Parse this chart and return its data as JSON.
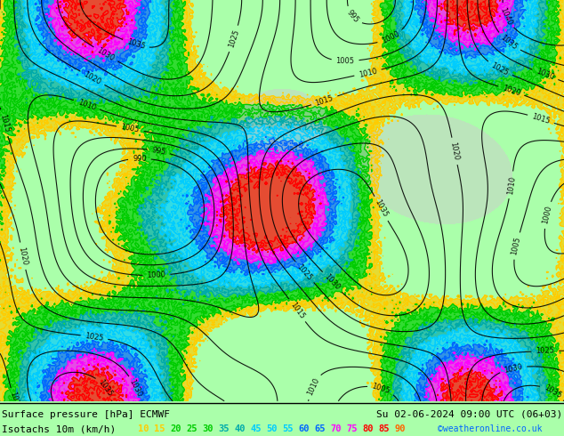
{
  "title_left": "Surface pressure [hPa] ECMWF",
  "title_right": "Su 02-06-2024 09:00 UTC (06+03)",
  "legend_label": "Isotachs 10m (km/h)",
  "copyright": "©weatheronline.co.uk",
  "isotach_values": [
    10,
    15,
    20,
    25,
    30,
    35,
    40,
    45,
    50,
    55,
    60,
    65,
    70,
    75,
    80,
    85,
    90
  ],
  "isotach_colors": [
    "#ffcc00",
    "#ffcc00",
    "#00cc00",
    "#00cc00",
    "#00cc00",
    "#00aaaa",
    "#00aaaa",
    "#00ccff",
    "#00ccff",
    "#00ccff",
    "#0066ff",
    "#0066ff",
    "#ff00ff",
    "#ff00ff",
    "#ff0000",
    "#ff0000",
    "#ff6600"
  ],
  "bg_color": "#aaffaa",
  "map_bg": "#aaffaa",
  "bottom_bar_color": "#000000",
  "fig_width": 6.34,
  "fig_height": 4.9,
  "dpi": 100
}
